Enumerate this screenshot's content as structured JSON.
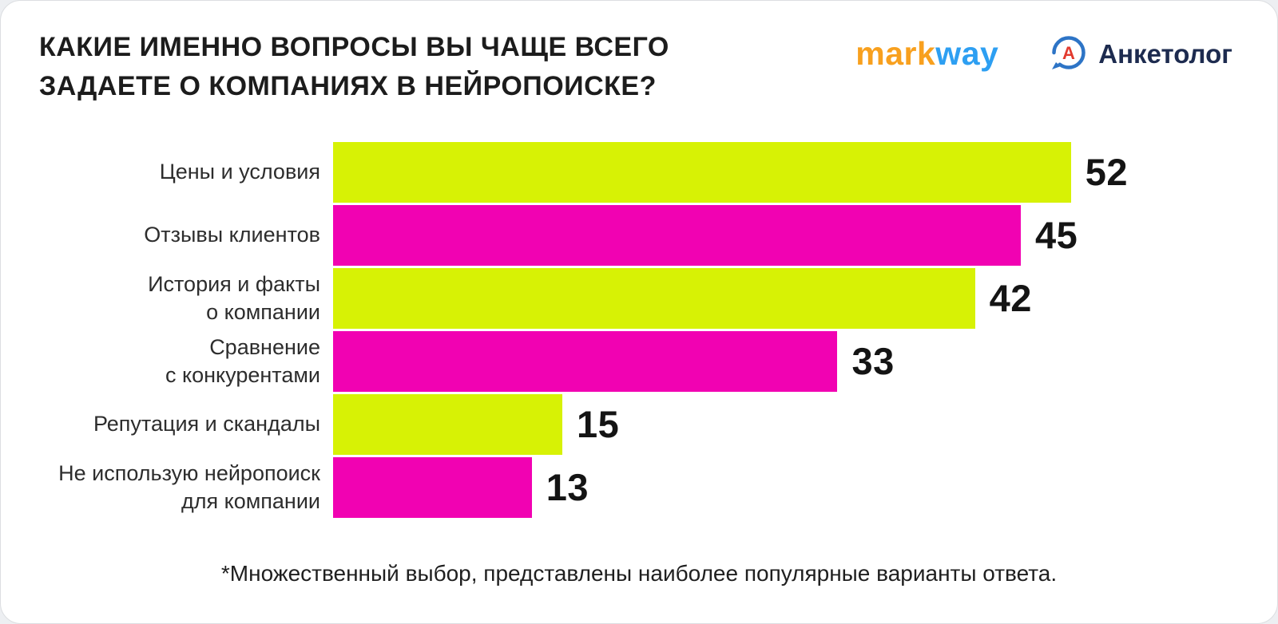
{
  "header": {
    "title": "КАКИЕ ИМЕННО ВОПРОСЫ ВЫ ЧАЩЕ ВСЕГО ЗАДАЕТЕ О КОМПАНИЯХ В НЕЙРОПОИСКЕ?",
    "logos": {
      "markway": {
        "part1": "mark",
        "part2": "way",
        "part1_color": "#f8a01e",
        "part2_color": "#2d9ff2"
      },
      "anketolog": {
        "label": "Анкетолог",
        "icon_letter": "А",
        "ring_color": "#2d74c6",
        "letter_color": "#e23a2e",
        "text_color": "#1d2b4f"
      }
    }
  },
  "footnote": "*Множественный выбор, представлены наиболее популярные варианты ответа.",
  "chart_data": {
    "type": "bar",
    "orientation": "horizontal",
    "title": "КАКИЕ ИМЕННО ВОПРОСЫ ВЫ ЧАЩЕ ВСЕГО ЗАДАЕТЕ О КОМПАНИЯХ В НЕЙРОПОИСКЕ?",
    "categories": [
      "Цены и условия",
      "Отзывы клиентов",
      "История и факты о компании",
      "Сравнение с конкурентами",
      "Репутация и скандалы",
      "Не использую нейропоиск для компании"
    ],
    "category_lines": [
      [
        "Цены и условия"
      ],
      [
        "Отзывы клиентов"
      ],
      [
        "История и факты",
        "о компании"
      ],
      [
        "Сравнение",
        "с конкурентами"
      ],
      [
        "Репутация и скандалы"
      ],
      [
        "Не использую нейропоиск",
        "для компании"
      ]
    ],
    "values": [
      52,
      45,
      42,
      33,
      15,
      13
    ],
    "xlim": [
      0,
      52
    ],
    "bar_palette": [
      "#d7f205",
      "#f102b2"
    ],
    "value_label_color": "#141414",
    "grid": false,
    "legend": "none",
    "footnote": "*Множественный выбор, представлены наиболее популярные варианты ответа."
  }
}
